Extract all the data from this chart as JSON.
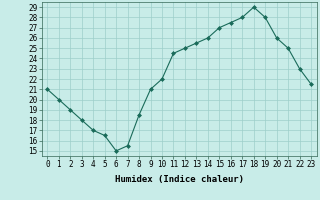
{
  "x": [
    0,
    1,
    2,
    3,
    4,
    5,
    6,
    7,
    8,
    9,
    10,
    11,
    12,
    13,
    14,
    15,
    16,
    17,
    18,
    19,
    20,
    21,
    22,
    23
  ],
  "y": [
    21,
    20,
    19,
    18,
    17,
    16.5,
    15,
    15.5,
    18.5,
    21,
    22,
    24.5,
    25,
    25.5,
    26,
    27,
    27.5,
    28,
    29,
    28,
    26,
    25,
    23,
    21.5
  ],
  "line_color": "#1a6b5a",
  "marker_color": "#1a6b5a",
  "bg_color": "#c8ece8",
  "grid_color": "#9dcfca",
  "xlabel": "Humidex (Indice chaleur)",
  "xlim": [
    -0.5,
    23.5
  ],
  "ylim": [
    14.5,
    29.5
  ],
  "yticks": [
    15,
    16,
    17,
    18,
    19,
    20,
    21,
    22,
    23,
    24,
    25,
    26,
    27,
    28,
    29
  ],
  "xticks": [
    0,
    1,
    2,
    3,
    4,
    5,
    6,
    7,
    8,
    9,
    10,
    11,
    12,
    13,
    14,
    15,
    16,
    17,
    18,
    19,
    20,
    21,
    22,
    23
  ],
  "xtick_labels": [
    "0",
    "1",
    "2",
    "3",
    "4",
    "5",
    "6",
    "7",
    "8",
    "9",
    "10",
    "11",
    "12",
    "13",
    "14",
    "15",
    "16",
    "17",
    "18",
    "19",
    "20",
    "21",
    "22",
    "23"
  ],
  "ytick_labels": [
    "15",
    "16",
    "17",
    "18",
    "19",
    "20",
    "21",
    "22",
    "23",
    "24",
    "25",
    "26",
    "27",
    "28",
    "29"
  ],
  "label_fontsize": 6.5,
  "tick_fontsize": 5.5
}
